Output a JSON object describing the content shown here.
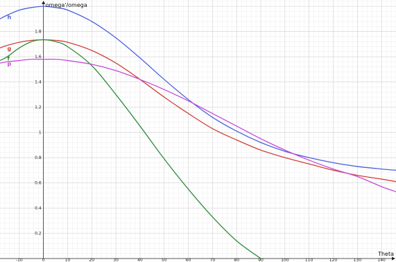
{
  "chart_data": {
    "type": "line",
    "title": "",
    "xlabel": "Theta",
    "ylabel": "omega'/omega",
    "xlim": [
      -18,
      146
    ],
    "ylim": [
      0,
      2.05
    ],
    "grid": true,
    "minor_grid": true,
    "x_ticks": [
      -10,
      0,
      10,
      20,
      30,
      40,
      50,
      60,
      70,
      80,
      90,
      100,
      110,
      120,
      130,
      140
    ],
    "y_ticks": [
      0.2,
      0.4,
      0.6,
      0.8,
      1,
      1.2,
      1.4,
      1.6,
      1.8
    ],
    "x_tick_labels": [
      "-10",
      "0",
      "10",
      "20",
      "30",
      "40",
      "50",
      "60",
      "70",
      "80",
      "90",
      "100",
      "110",
      "120",
      "130",
      "140"
    ],
    "y_tick_labels": [
      "0.2",
      "0.4",
      "0.6",
      "0.8",
      "1",
      "1.2",
      "1.4",
      "1.6",
      "1.8"
    ],
    "series": [
      {
        "name": "h",
        "color": "#4a5fe0",
        "label_at": [
          -15,
          1.9
        ],
        "x": [
          -18,
          -15,
          -10,
          -5,
          0,
          5,
          10,
          20,
          30,
          40,
          50,
          60,
          70,
          80,
          90,
          100,
          110,
          120,
          130,
          140,
          146
        ],
        "y": [
          1.9,
          1.93,
          1.97,
          1.99,
          2.0,
          1.99,
          1.97,
          1.88,
          1.75,
          1.59,
          1.42,
          1.26,
          1.12,
          1.01,
          0.92,
          0.85,
          0.8,
          0.76,
          0.73,
          0.71,
          0.7
        ]
      },
      {
        "name": "g",
        "color": "#d0403a",
        "label_at": [
          -15,
          1.65
        ],
        "x": [
          -18,
          -15,
          -10,
          -5,
          0,
          5,
          10,
          20,
          30,
          40,
          50,
          60,
          70,
          80,
          90,
          100,
          110,
          120,
          130,
          140,
          146
        ],
        "y": [
          1.67,
          1.69,
          1.715,
          1.73,
          1.735,
          1.73,
          1.715,
          1.65,
          1.55,
          1.42,
          1.28,
          1.15,
          1.03,
          0.94,
          0.86,
          0.8,
          0.75,
          0.7,
          0.66,
          0.63,
          0.61
        ]
      },
      {
        "name": "f",
        "color": "#2e8b3a",
        "label_at": [
          -15,
          1.57
        ],
        "x": [
          -18,
          -15,
          -10,
          -5,
          0,
          5,
          10,
          20,
          30,
          40,
          50,
          60,
          70,
          80,
          90
        ],
        "y": [
          1.57,
          1.6,
          1.67,
          1.72,
          1.735,
          1.72,
          1.68,
          1.53,
          1.3,
          1.05,
          0.79,
          0.55,
          0.33,
          0.14,
          0.0
        ]
      },
      {
        "name": "p",
        "color": "#c44ad8",
        "label_at": [
          -15,
          1.53
        ],
        "x": [
          -18,
          -15,
          -10,
          -5,
          0,
          5,
          10,
          20,
          30,
          40,
          50,
          60,
          70,
          80,
          90,
          100,
          110,
          120,
          130,
          140,
          146
        ],
        "y": [
          1.55,
          1.56,
          1.57,
          1.58,
          1.58,
          1.58,
          1.57,
          1.54,
          1.49,
          1.42,
          1.34,
          1.25,
          1.15,
          1.05,
          0.95,
          0.86,
          0.78,
          0.71,
          0.65,
          0.57,
          0.53
        ]
      }
    ]
  }
}
